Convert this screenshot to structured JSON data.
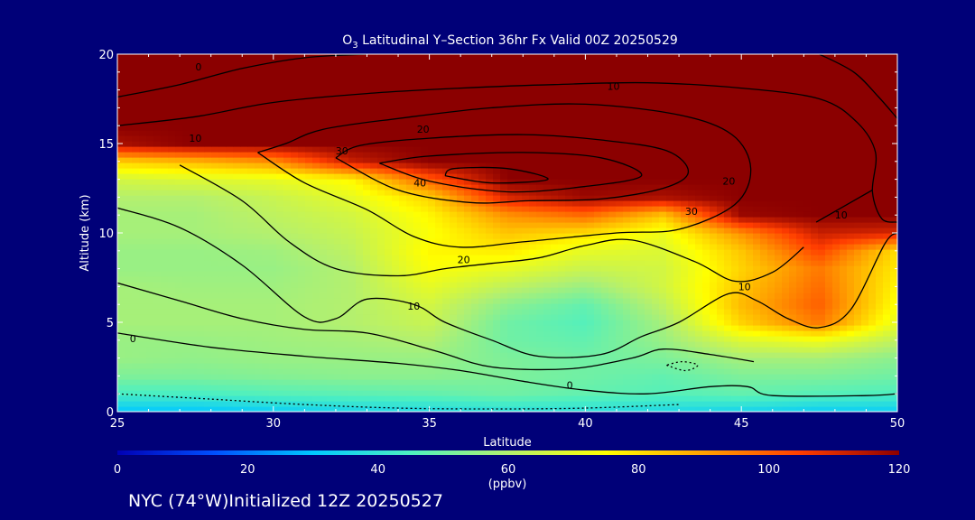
{
  "chart_data": {
    "type": "heatmap",
    "title": "O",
    "title_sub": "3",
    "title_rest": " Latitudinal Y–Section 36hr  Fx Valid 00Z 20250529",
    "xlabel": "Latitude",
    "ylabel": "Altitude (km)",
    "xlim": [
      25,
      50
    ],
    "ylim": [
      0,
      20
    ],
    "x_ticks": [
      25,
      30,
      35,
      40,
      45,
      50
    ],
    "y_ticks": [
      0,
      5,
      10,
      15,
      20
    ],
    "colorbar": {
      "label": "(ppbv)",
      "range": [
        0,
        120
      ],
      "ticks": [
        0,
        20,
        40,
        60,
        80,
        100,
        120
      ],
      "colors": [
        "#0000b4",
        "#0050ff",
        "#00c8ff",
        "#4ef0c0",
        "#b4f06e",
        "#ffff00",
        "#ffa000",
        "#ff3c00",
        "#8b0000"
      ]
    },
    "ozone_grid": {
      "latitudes": [
        25,
        27.5,
        30,
        32.5,
        35,
        37.5,
        40,
        42.5,
        45,
        47.5,
        50
      ],
      "altitudes": [
        0,
        1,
        2,
        3,
        4,
        5,
        6,
        7,
        8,
        9,
        10,
        11,
        12,
        13,
        14,
        15,
        16,
        17,
        18,
        19,
        20
      ],
      "values": [
        [
          30,
          30,
          32,
          35,
          36,
          38,
          38,
          36,
          34,
          32,
          32
        ],
        [
          44,
          44,
          46,
          47,
          48,
          50,
          48,
          46,
          48,
          46,
          45
        ],
        [
          52,
          52,
          53,
          54,
          54,
          52,
          50,
          48,
          52,
          52,
          50
        ],
        [
          56,
          55,
          56,
          56,
          56,
          52,
          50,
          52,
          58,
          58,
          54
        ],
        [
          56,
          56,
          57,
          58,
          60,
          50,
          48,
          56,
          68,
          72,
          62
        ],
        [
          58,
          58,
          58,
          60,
          64,
          50,
          46,
          58,
          82,
          96,
          70
        ],
        [
          58,
          58,
          58,
          60,
          66,
          54,
          48,
          62,
          86,
          100,
          74
        ],
        [
          58,
          57,
          57,
          60,
          70,
          62,
          56,
          66,
          84,
          98,
          76
        ],
        [
          56,
          56,
          56,
          60,
          74,
          70,
          64,
          66,
          82,
          96,
          78
        ],
        [
          56,
          56,
          57,
          62,
          76,
          78,
          70,
          68,
          84,
          104,
          80
        ],
        [
          58,
          58,
          60,
          64,
          74,
          84,
          80,
          72,
          92,
          112,
          110
        ],
        [
          58,
          58,
          62,
          66,
          76,
          92,
          98,
          84,
          118,
          120,
          120
        ],
        [
          60,
          60,
          64,
          70,
          82,
          110,
          118,
          116,
          120,
          120,
          120
        ],
        [
          66,
          68,
          70,
          76,
          100,
          120,
          120,
          120,
          120,
          120,
          120
        ],
        [
          82,
          86,
          92,
          112,
          120,
          120,
          120,
          120,
          120,
          120,
          120
        ],
        [
          116,
          120,
          120,
          120,
          120,
          120,
          120,
          120,
          120,
          120,
          120
        ],
        [
          120,
          120,
          120,
          120,
          120,
          120,
          120,
          120,
          120,
          120,
          120
        ],
        [
          120,
          120,
          120,
          120,
          120,
          120,
          120,
          120,
          120,
          120,
          120
        ],
        [
          120,
          120,
          120,
          120,
          120,
          120,
          120,
          120,
          120,
          120,
          120
        ],
        [
          120,
          120,
          120,
          120,
          120,
          120,
          120,
          120,
          120,
          120,
          120
        ],
        [
          120,
          120,
          120,
          120,
          120,
          120,
          120,
          120,
          120,
          120,
          120
        ]
      ]
    },
    "contour_lines": [
      {
        "value": "0",
        "style": "solid",
        "points": [
          [
            25,
            4.4
          ],
          [
            28,
            3.6
          ],
          [
            31,
            3.1
          ],
          [
            34,
            2.7
          ],
          [
            36,
            2.3
          ],
          [
            38,
            1.7
          ],
          [
            40,
            1.2
          ],
          [
            42,
            1.0
          ],
          [
            44,
            1.4
          ],
          [
            45.2,
            1.4
          ],
          [
            46,
            0.9
          ],
          [
            49,
            0.9
          ],
          [
            50,
            1.0
          ]
        ]
      },
      {
        "value": "0",
        "style": "dotted",
        "points": [
          [
            25,
            1.0
          ],
          [
            28,
            0.7
          ],
          [
            31,
            0.4
          ],
          [
            34,
            0.2
          ],
          [
            37,
            0.15
          ],
          [
            40,
            0.2
          ],
          [
            43,
            0.4
          ]
        ]
      },
      {
        "value": "",
        "style": "solid",
        "points": [
          [
            25,
            7.2
          ],
          [
            27,
            6.2
          ],
          [
            29,
            5.2
          ],
          [
            31,
            4.6
          ],
          [
            33,
            4.4
          ],
          [
            35.2,
            3.4
          ],
          [
            37,
            2.5
          ],
          [
            39.5,
            2.4
          ],
          [
            41.5,
            3.0
          ],
          [
            42.5,
            3.5
          ],
          [
            44,
            3.2
          ],
          [
            45.4,
            2.8
          ]
        ]
      },
      {
        "value": "10",
        "style": "solid",
        "points": [
          [
            25,
            11.4
          ],
          [
            27,
            10.3
          ],
          [
            29,
            8.2
          ],
          [
            31,
            5.3
          ],
          [
            32,
            5.2
          ],
          [
            33,
            6.3
          ],
          [
            34.5,
            6.0
          ],
          [
            35.5,
            5.0
          ],
          [
            37,
            4.0
          ],
          [
            38.5,
            3.1
          ],
          [
            40.5,
            3.2
          ],
          [
            41.8,
            4.2
          ],
          [
            43,
            5.0
          ],
          [
            44.6,
            6.6
          ],
          [
            45.5,
            6.2
          ],
          [
            46.5,
            5.2
          ],
          [
            47.5,
            4.7
          ],
          [
            48.5,
            5.7
          ],
          [
            49.6,
            9.4
          ],
          [
            50,
            10.0
          ]
        ]
      },
      {
        "value": "20",
        "style": "solid",
        "points": [
          [
            27,
            13.8
          ],
          [
            29,
            11.8
          ],
          [
            30.5,
            9.5
          ],
          [
            32,
            8.0
          ],
          [
            34,
            7.6
          ],
          [
            35.5,
            8.0
          ],
          [
            37,
            8.3
          ],
          [
            38.5,
            8.6
          ],
          [
            40,
            9.3
          ],
          [
            41.5,
            9.6
          ],
          [
            43.5,
            8.4
          ],
          [
            44.8,
            7.3
          ],
          [
            46,
            7.8
          ],
          [
            47,
            9.2
          ]
        ]
      },
      {
        "value": "30",
        "style": "solid",
        "points": [
          [
            29.5,
            14.5
          ],
          [
            31,
            12.8
          ],
          [
            33,
            11.3
          ],
          [
            34.5,
            9.8
          ],
          [
            36,
            9.2
          ],
          [
            38,
            9.5
          ],
          [
            41,
            10.0
          ],
          [
            43,
            10.2
          ],
          [
            44.8,
            11.6
          ],
          [
            45.3,
            13.6
          ],
          [
            44.7,
            15.5
          ],
          [
            43,
            16.6
          ],
          [
            40,
            17.2
          ],
          [
            37,
            17.0
          ],
          [
            34,
            16.4
          ],
          [
            31.6,
            15.8
          ],
          [
            30.4,
            15.0
          ],
          [
            29.5,
            14.5
          ]
        ]
      },
      {
        "value": "40",
        "style": "solid",
        "points": [
          [
            32,
            14.2
          ],
          [
            34,
            12.4
          ],
          [
            36.3,
            11.7
          ],
          [
            38.2,
            11.8
          ],
          [
            40.5,
            11.9
          ],
          [
            42.5,
            12.5
          ],
          [
            43.3,
            13.4
          ],
          [
            42.6,
            14.6
          ],
          [
            40.5,
            15.2
          ],
          [
            38,
            15.5
          ],
          [
            35,
            15.3
          ],
          [
            32.8,
            14.9
          ],
          [
            32,
            14.2
          ]
        ]
      },
      {
        "value": "",
        "style": "solid",
        "points": [
          [
            33.4,
            13.9
          ],
          [
            35,
            12.9
          ],
          [
            37.5,
            12.3
          ],
          [
            40,
            12.6
          ],
          [
            41.8,
            13.2
          ],
          [
            40.5,
            14.2
          ],
          [
            38,
            14.5
          ],
          [
            35,
            14.3
          ],
          [
            33.4,
            13.9
          ]
        ]
      },
      {
        "value": "",
        "style": "solid",
        "points": [
          [
            35.5,
            13.2
          ],
          [
            37,
            12.8
          ],
          [
            38.8,
            13.0
          ],
          [
            37.5,
            13.6
          ],
          [
            35.8,
            13.6
          ],
          [
            35.5,
            13.2
          ]
        ]
      },
      {
        "value": "10",
        "style": "solid",
        "points": [
          [
            25,
            16.0
          ],
          [
            27.5,
            16.5
          ],
          [
            30,
            17.3
          ],
          [
            33,
            17.8
          ],
          [
            36,
            18.1
          ],
          [
            39,
            18.3
          ],
          [
            42,
            18.4
          ],
          [
            45,
            18.1
          ],
          [
            47.5,
            17.5
          ],
          [
            48.7,
            16.2
          ],
          [
            49.3,
            14.5
          ],
          [
            49.2,
            12.3
          ],
          [
            49.5,
            10.8
          ],
          [
            50,
            10.6
          ]
        ]
      },
      {
        "value": "0",
        "style": "solid",
        "points": [
          [
            25,
            17.6
          ],
          [
            27,
            18.3
          ],
          [
            29,
            19.2
          ],
          [
            31,
            19.8
          ],
          [
            33,
            20.0
          ]
        ]
      },
      {
        "value": "",
        "style": "solid",
        "points": [
          [
            47.5,
            20.0
          ],
          [
            48.6,
            19.0
          ],
          [
            49.4,
            17.6
          ],
          [
            50,
            16.4
          ]
        ]
      },
      {
        "value": "",
        "style": "solid",
        "points": [
          [
            47.4,
            10.6
          ],
          [
            48.3,
            11.5
          ],
          [
            49.2,
            12.4
          ]
        ]
      },
      {
        "value": "",
        "style": "dotted",
        "points": [
          [
            42.6,
            2.6
          ],
          [
            43.2,
            2.3
          ],
          [
            43.6,
            2.6
          ],
          [
            43.1,
            2.8
          ],
          [
            42.6,
            2.6
          ]
        ]
      }
    ],
    "contour_labels": [
      {
        "text": "0",
        "lat": 27.6,
        "alt": 19.3
      },
      {
        "text": "10",
        "lat": 40.9,
        "alt": 18.2
      },
      {
        "text": "20",
        "lat": 34.8,
        "alt": 15.8
      },
      {
        "text": "30",
        "lat": 32.2,
        "alt": 14.6
      },
      {
        "text": "10",
        "lat": 27.5,
        "alt": 15.3
      },
      {
        "text": "40",
        "lat": 34.7,
        "alt": 12.8
      },
      {
        "text": "20",
        "lat": 44.6,
        "alt": 12.9
      },
      {
        "text": "10",
        "lat": 48.2,
        "alt": 11.0
      },
      {
        "text": "30",
        "lat": 43.4,
        "alt": 11.2
      },
      {
        "text": "20",
        "lat": 36.1,
        "alt": 8.5
      },
      {
        "text": "10",
        "lat": 34.5,
        "alt": 5.9
      },
      {
        "text": "10",
        "lat": 45.1,
        "alt": 7.0
      },
      {
        "text": "0",
        "lat": 25.5,
        "alt": 4.1
      },
      {
        "text": "0",
        "lat": 39.5,
        "alt": 1.5
      }
    ]
  },
  "footer": {
    "station": "NYC (74°W)Initialized 12Z 20250527"
  }
}
